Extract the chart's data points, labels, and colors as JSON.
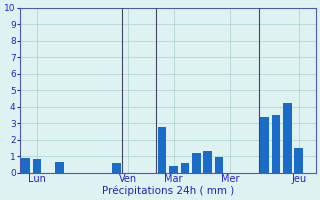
{
  "xlabel": "Précipitations 24h ( mm )",
  "ylim": [
    0,
    10
  ],
  "bar_color": "#1a6cc8",
  "background_color": "#dff2f2",
  "grid_color": "#aacfcf",
  "tick_color": "#2222cc",
  "xlabel_color": "#2222bb",
  "bar_values": [
    0.9,
    0.85,
    0.0,
    0.65,
    0.0,
    0.0,
    0.0,
    0.0,
    0.55,
    0.0,
    0.0,
    0.0,
    2.75,
    0.4,
    0.6,
    1.2,
    1.3,
    0.95,
    0.0,
    0.0,
    0.0,
    3.35,
    3.5,
    4.2,
    1.5,
    0.0
  ],
  "day_labels": [
    "Lun",
    "Ven",
    "Mar",
    "Mer",
    "Jeu"
  ],
  "day_tick_positions": [
    1,
    9,
    13,
    18,
    24
  ],
  "vline_positions": [
    8.5,
    11.5,
    20.5
  ],
  "bar_width": 0.75
}
